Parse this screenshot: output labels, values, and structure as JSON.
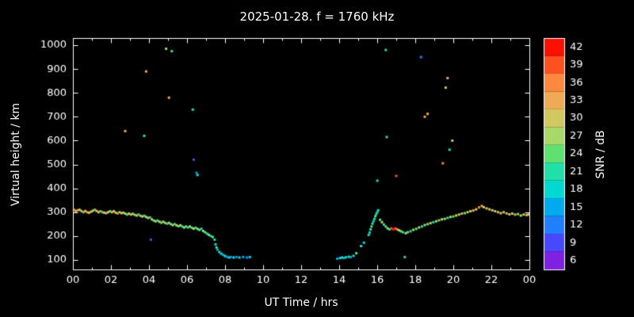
{
  "title": "2025-01-28. f = 1760 kHz",
  "colors": {
    "background": "#000000",
    "axis": "#ffffff",
    "text": "#ffffff"
  },
  "chart_data": {
    "type": "scatter",
    "title": "2025-01-28. f = 1760 kHz",
    "xlabel": "UT Time / hrs",
    "ylabel": "Virtual height / km",
    "xlim": [
      0,
      24
    ],
    "ylim": [
      60,
      1030
    ],
    "grid": false,
    "xticks": {
      "values": [
        0,
        2,
        4,
        6,
        8,
        10,
        12,
        14,
        16,
        18,
        20,
        22,
        24
      ],
      "labels": [
        "00",
        "02",
        "04",
        "06",
        "08",
        "10",
        "12",
        "14",
        "16",
        "18",
        "20",
        "22",
        "00"
      ]
    },
    "yticks": {
      "values": [
        100,
        200,
        300,
        400,
        500,
        600,
        700,
        800,
        900,
        1000
      ],
      "labels": [
        "100",
        "200",
        "300",
        "400",
        "500",
        "600",
        "700",
        "800",
        "900",
        "1000"
      ]
    },
    "colorbar": {
      "label": "SNR / dB",
      "ticks": [
        6,
        9,
        12,
        15,
        18,
        21,
        24,
        27,
        30,
        33,
        36,
        39,
        42
      ],
      "range": [
        4.5,
        43.5
      ]
    },
    "colormap": [
      {
        "v": 6,
        "hex": "#8020e0"
      },
      {
        "v": 9,
        "hex": "#4848ff"
      },
      {
        "v": 12,
        "hex": "#2080ff"
      },
      {
        "v": 15,
        "hex": "#00aaee"
      },
      {
        "v": 18,
        "hex": "#00d8d0"
      },
      {
        "v": 21,
        "hex": "#20e0a8"
      },
      {
        "v": 24,
        "hex": "#60e070"
      },
      {
        "v": 27,
        "hex": "#a8d868"
      },
      {
        "v": 30,
        "hex": "#d0c860"
      },
      {
        "v": 33,
        "hex": "#eeaa55"
      },
      {
        "v": 36,
        "hex": "#ff8840"
      },
      {
        "v": 39,
        "hex": "#ff5020"
      },
      {
        "v": 42,
        "hex": "#ff1000"
      }
    ],
    "points_format": [
      "ut_hours",
      "virtual_height_km",
      "snr_db"
    ],
    "points": [
      [
        0.05,
        310,
        33
      ],
      [
        0.15,
        305,
        30
      ],
      [
        0.25,
        308,
        36
      ],
      [
        0.35,
        310,
        27
      ],
      [
        0.45,
        305,
        33
      ],
      [
        0.55,
        300,
        24
      ],
      [
        0.65,
        305,
        30
      ],
      [
        0.75,
        300,
        36
      ],
      [
        0.85,
        298,
        27
      ],
      [
        0.95,
        302,
        33
      ],
      [
        1.05,
        306,
        30
      ],
      [
        1.15,
        310,
        24
      ],
      [
        1.25,
        305,
        33
      ],
      [
        1.35,
        300,
        27
      ],
      [
        1.45,
        304,
        36
      ],
      [
        1.55,
        300,
        21
      ],
      [
        1.65,
        298,
        30
      ],
      [
        1.75,
        296,
        33
      ],
      [
        1.85,
        300,
        27
      ],
      [
        1.95,
        304,
        24
      ],
      [
        2.05,
        300,
        33
      ],
      [
        2.15,
        304,
        30
      ],
      [
        2.25,
        298,
        27
      ],
      [
        2.35,
        295,
        36
      ],
      [
        2.45,
        300,
        24
      ],
      [
        2.55,
        296,
        30
      ],
      [
        2.65,
        298,
        33
      ],
      [
        2.75,
        294,
        27
      ],
      [
        2.85,
        290,
        21
      ],
      [
        2.95,
        294,
        30
      ],
      [
        3.05,
        290,
        33
      ],
      [
        3.15,
        293,
        27
      ],
      [
        3.25,
        289,
        24
      ],
      [
        3.35,
        286,
        30
      ],
      [
        3.45,
        290,
        21
      ],
      [
        3.55,
        285,
        33
      ],
      [
        3.65,
        282,
        27
      ],
      [
        3.75,
        285,
        24
      ],
      [
        3.85,
        280,
        30
      ],
      [
        3.95,
        276,
        27
      ],
      [
        4.05,
        278,
        21
      ],
      [
        4.15,
        270,
        30
      ],
      [
        4.25,
        265,
        24
      ],
      [
        4.35,
        262,
        27
      ],
      [
        4.45,
        265,
        21
      ],
      [
        4.55,
        260,
        30
      ],
      [
        4.65,
        256,
        24
      ],
      [
        4.75,
        260,
        27
      ],
      [
        4.85,
        255,
        33
      ],
      [
        4.95,
        252,
        21
      ],
      [
        5.05,
        255,
        27
      ],
      [
        5.15,
        250,
        24
      ],
      [
        5.25,
        246,
        30
      ],
      [
        5.35,
        250,
        21
      ],
      [
        5.45,
        245,
        27
      ],
      [
        5.55,
        241,
        24
      ],
      [
        5.65,
        245,
        30
      ],
      [
        5.75,
        240,
        21
      ],
      [
        5.85,
        236,
        27
      ],
      [
        5.95,
        240,
        24
      ],
      [
        6.05,
        236,
        21
      ],
      [
        6.15,
        240,
        27
      ],
      [
        6.25,
        235,
        24
      ],
      [
        6.35,
        231,
        30
      ],
      [
        6.45,
        235,
        21
      ],
      [
        6.55,
        230,
        27
      ],
      [
        6.65,
        226,
        24
      ],
      [
        6.75,
        230,
        21
      ],
      [
        6.85,
        221,
        27
      ],
      [
        6.95,
        216,
        24
      ],
      [
        7.05,
        210,
        21
      ],
      [
        7.15,
        205,
        27
      ],
      [
        7.25,
        200,
        18
      ],
      [
        7.35,
        196,
        24
      ],
      [
        7.45,
        185,
        21
      ],
      [
        7.5,
        165,
        18
      ],
      [
        7.55,
        152,
        24
      ],
      [
        7.6,
        143,
        15
      ],
      [
        7.7,
        133,
        21
      ],
      [
        7.8,
        126,
        18
      ],
      [
        7.9,
        121,
        15
      ],
      [
        8.0,
        116,
        21
      ],
      [
        8.1,
        113,
        12
      ],
      [
        8.2,
        110,
        18
      ],
      [
        8.3,
        112,
        15
      ],
      [
        8.45,
        110,
        21
      ],
      [
        8.6,
        112,
        12
      ],
      [
        8.75,
        110,
        18
      ],
      [
        8.95,
        112,
        15
      ],
      [
        9.15,
        110,
        12
      ],
      [
        9.3,
        112,
        18
      ],
      [
        13.9,
        105,
        15
      ],
      [
        14.05,
        108,
        18
      ],
      [
        14.15,
        110,
        21
      ],
      [
        14.25,
        108,
        15
      ],
      [
        14.35,
        111,
        18
      ],
      [
        14.5,
        113,
        21
      ],
      [
        14.6,
        112,
        15
      ],
      [
        14.75,
        117,
        18
      ],
      [
        14.9,
        128,
        24
      ],
      [
        15.15,
        158,
        21
      ],
      [
        15.3,
        172,
        18
      ],
      [
        15.55,
        205,
        21
      ],
      [
        15.6,
        215,
        18
      ],
      [
        15.65,
        228,
        21
      ],
      [
        15.7,
        240,
        24
      ],
      [
        15.75,
        252,
        21
      ],
      [
        15.8,
        262,
        18
      ],
      [
        15.85,
        272,
        21
      ],
      [
        15.9,
        283,
        24
      ],
      [
        15.95,
        292,
        21
      ],
      [
        16.0,
        300,
        18
      ],
      [
        16.05,
        308,
        21
      ],
      [
        16.15,
        268,
        24
      ],
      [
        16.25,
        258,
        27
      ],
      [
        16.35,
        248,
        21
      ],
      [
        16.45,
        240,
        24
      ],
      [
        16.55,
        232,
        27
      ],
      [
        16.65,
        228,
        21
      ],
      [
        16.75,
        232,
        39
      ],
      [
        16.85,
        228,
        42
      ],
      [
        16.95,
        232,
        39
      ],
      [
        17.05,
        228,
        36
      ],
      [
        17.15,
        224,
        27
      ],
      [
        17.25,
        220,
        24
      ],
      [
        17.35,
        216,
        21
      ],
      [
        17.5,
        212,
        27
      ],
      [
        17.6,
        216,
        24
      ],
      [
        17.75,
        220,
        21
      ],
      [
        17.9,
        226,
        27
      ],
      [
        18.05,
        230,
        24
      ],
      [
        18.2,
        236,
        30
      ],
      [
        18.35,
        240,
        21
      ],
      [
        18.5,
        246,
        27
      ],
      [
        18.65,
        250,
        24
      ],
      [
        18.8,
        254,
        30
      ],
      [
        18.95,
        258,
        21
      ],
      [
        19.1,
        262,
        27
      ],
      [
        19.25,
        266,
        24
      ],
      [
        19.4,
        270,
        30
      ],
      [
        19.55,
        272,
        27
      ],
      [
        19.7,
        276,
        21
      ],
      [
        19.85,
        280,
        27
      ],
      [
        20.0,
        282,
        24
      ],
      [
        20.15,
        286,
        30
      ],
      [
        20.3,
        290,
        27
      ],
      [
        20.45,
        294,
        33
      ],
      [
        20.6,
        296,
        24
      ],
      [
        20.75,
        300,
        30
      ],
      [
        20.9,
        304,
        27
      ],
      [
        21.05,
        307,
        33
      ],
      [
        21.2,
        312,
        30
      ],
      [
        21.35,
        320,
        36
      ],
      [
        21.5,
        326,
        33
      ],
      [
        21.6,
        321,
        30
      ],
      [
        21.75,
        316,
        27
      ],
      [
        21.9,
        312,
        33
      ],
      [
        22.05,
        308,
        30
      ],
      [
        22.2,
        304,
        27
      ],
      [
        22.35,
        300,
        33
      ],
      [
        22.5,
        296,
        30
      ],
      [
        22.65,
        300,
        27
      ],
      [
        22.8,
        295,
        33
      ],
      [
        22.95,
        291,
        30
      ],
      [
        23.1,
        294,
        27
      ],
      [
        23.25,
        290,
        33
      ],
      [
        23.4,
        292,
        24
      ],
      [
        23.55,
        286,
        30
      ],
      [
        23.7,
        290,
        27
      ],
      [
        23.85,
        288,
        33
      ],
      [
        23.95,
        290,
        30
      ],
      [
        2.75,
        640,
        33
      ],
      [
        3.75,
        620,
        21
      ],
      [
        3.85,
        890,
        33
      ],
      [
        4.1,
        185,
        9
      ],
      [
        4.9,
        985,
        27
      ],
      [
        5.2,
        975,
        21
      ],
      [
        5.05,
        780,
        33
      ],
      [
        6.3,
        730,
        21
      ],
      [
        6.35,
        520,
        9
      ],
      [
        6.5,
        465,
        12
      ],
      [
        6.55,
        456,
        21
      ],
      [
        16.0,
        432,
        18
      ],
      [
        16.45,
        980,
        21
      ],
      [
        16.5,
        615,
        21
      ],
      [
        17.0,
        452,
        39
      ],
      [
        17.45,
        112,
        21
      ],
      [
        18.3,
        950,
        12
      ],
      [
        18.5,
        700,
        33
      ],
      [
        18.65,
        712,
        33
      ],
      [
        19.45,
        505,
        36
      ],
      [
        19.6,
        822,
        30
      ],
      [
        19.7,
        862,
        33
      ],
      [
        19.8,
        562,
        21
      ],
      [
        19.95,
        600,
        27
      ]
    ]
  }
}
